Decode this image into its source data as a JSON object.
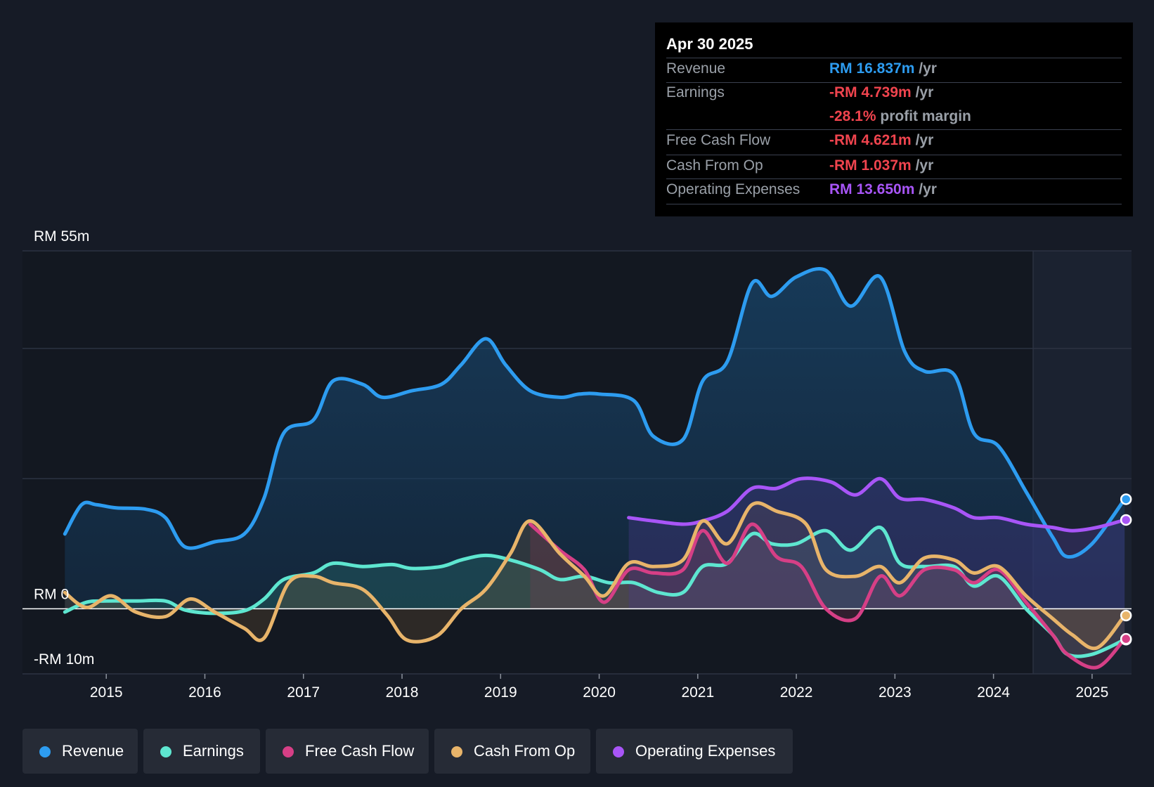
{
  "tooltip": {
    "date": "Apr 30 2025",
    "rows": [
      {
        "label": "Revenue",
        "value": "RM 16.837m",
        "unit": "/yr",
        "color": "#2d9cf0"
      },
      {
        "label": "Earnings",
        "value": "-RM 4.739m",
        "unit": "/yr",
        "color": "#f0444e"
      },
      {
        "label": "",
        "value": "-28.1%",
        "unit": "profit margin",
        "color": "#f0444e"
      },
      {
        "label": "Free Cash Flow",
        "value": "-RM 4.621m",
        "unit": "/yr",
        "color": "#f0444e"
      },
      {
        "label": "Cash From Op",
        "value": "-RM 1.037m",
        "unit": "/yr",
        "color": "#f0444e"
      },
      {
        "label": "Operating Expenses",
        "value": "RM 13.650m",
        "unit": "/yr",
        "color": "#a855f7"
      }
    ]
  },
  "legend": [
    {
      "label": "Revenue",
      "color": "#2d9cf0"
    },
    {
      "label": "Earnings",
      "color": "#5ee6d0"
    },
    {
      "label": "Free Cash Flow",
      "color": "#d63f86"
    },
    {
      "label": "Cash From Op",
      "color": "#e8b46a"
    },
    {
      "label": "Operating Expenses",
      "color": "#a855f7"
    }
  ],
  "chart_data": {
    "type": "line",
    "title": "",
    "xlabel": "",
    "ylabel": "",
    "currency_unit": "RM m",
    "ylim": [
      -10,
      55
    ],
    "y_tick_labels": [
      {
        "value": 55,
        "label": "RM 55m"
      },
      {
        "value": 0,
        "label": "RM 0"
      },
      {
        "value": -10,
        "label": "-RM 10m"
      }
    ],
    "gridlines": [
      55,
      40,
      20,
      0,
      -10
    ],
    "xlim": [
      2014.15,
      2025.4
    ],
    "x_ticks": [
      2015,
      2016,
      2017,
      2018,
      2019,
      2020,
      2021,
      2022,
      2023,
      2024,
      2025
    ],
    "x_tick_labels": [
      "2015",
      "2016",
      "2017",
      "2018",
      "2019",
      "2020",
      "2021",
      "2022",
      "2023",
      "2024",
      "2025"
    ],
    "forecast_start": 2024.33,
    "series": [
      {
        "name": "Revenue",
        "color": "#2d9cf0",
        "points": [
          [
            2014.58,
            11.5
          ],
          [
            2014.75,
            16
          ],
          [
            2014.9,
            16
          ],
          [
            2015.1,
            15.5
          ],
          [
            2015.4,
            15.3
          ],
          [
            2015.6,
            14
          ],
          [
            2015.8,
            9.5
          ],
          [
            2016.1,
            10.3
          ],
          [
            2016.4,
            11.5
          ],
          [
            2016.6,
            17
          ],
          [
            2016.8,
            27
          ],
          [
            2017.1,
            29
          ],
          [
            2017.3,
            35
          ],
          [
            2017.6,
            34.5
          ],
          [
            2017.8,
            32.5
          ],
          [
            2018.1,
            33.5
          ],
          [
            2018.4,
            34.5
          ],
          [
            2018.6,
            37.5
          ],
          [
            2018.85,
            41.5
          ],
          [
            2019.05,
            37.5
          ],
          [
            2019.3,
            33.5
          ],
          [
            2019.6,
            32.5
          ],
          [
            2019.8,
            33
          ],
          [
            2020.0,
            33
          ],
          [
            2020.35,
            32
          ],
          [
            2020.55,
            26.5
          ],
          [
            2020.85,
            26
          ],
          [
            2021.05,
            35
          ],
          [
            2021.3,
            38
          ],
          [
            2021.55,
            50
          ],
          [
            2021.75,
            48
          ],
          [
            2022.0,
            51
          ],
          [
            2022.3,
            52
          ],
          [
            2022.55,
            46.5
          ],
          [
            2022.85,
            51
          ],
          [
            2023.1,
            39.5
          ],
          [
            2023.3,
            36.5
          ],
          [
            2023.6,
            36
          ],
          [
            2023.8,
            27
          ],
          [
            2024.05,
            25
          ],
          [
            2024.33,
            18
          ],
          [
            2024.6,
            11
          ],
          [
            2024.75,
            8
          ],
          [
            2025.0,
            10
          ],
          [
            2025.33,
            16.837
          ]
        ]
      },
      {
        "name": "Earnings",
        "color": "#5ee6d0",
        "points": [
          [
            2014.58,
            -0.5
          ],
          [
            2014.8,
            1
          ],
          [
            2015.0,
            1.2
          ],
          [
            2015.3,
            1.2
          ],
          [
            2015.6,
            1.2
          ],
          [
            2015.8,
            -0.2
          ],
          [
            2016.1,
            -0.7
          ],
          [
            2016.4,
            -0.3
          ],
          [
            2016.6,
            1.5
          ],
          [
            2016.8,
            4.5
          ],
          [
            2017.1,
            5.5
          ],
          [
            2017.3,
            7
          ],
          [
            2017.6,
            6.5
          ],
          [
            2017.9,
            6.8
          ],
          [
            2018.1,
            6.2
          ],
          [
            2018.4,
            6.5
          ],
          [
            2018.6,
            7.5
          ],
          [
            2018.85,
            8.2
          ],
          [
            2019.1,
            7.5
          ],
          [
            2019.4,
            6
          ],
          [
            2019.6,
            4.5
          ],
          [
            2019.85,
            5
          ],
          [
            2020.1,
            4
          ],
          [
            2020.35,
            4
          ],
          [
            2020.6,
            2.5
          ],
          [
            2020.85,
            2.5
          ],
          [
            2021.05,
            6.5
          ],
          [
            2021.3,
            7
          ],
          [
            2021.55,
            11.5
          ],
          [
            2021.75,
            10
          ],
          [
            2022.0,
            10
          ],
          [
            2022.3,
            12
          ],
          [
            2022.55,
            9
          ],
          [
            2022.85,
            12.5
          ],
          [
            2023.05,
            7
          ],
          [
            2023.3,
            6.5
          ],
          [
            2023.6,
            6.5
          ],
          [
            2023.8,
            3.5
          ],
          [
            2024.05,
            5
          ],
          [
            2024.33,
            0
          ],
          [
            2024.6,
            -4
          ],
          [
            2024.75,
            -7
          ],
          [
            2025.0,
            -7
          ],
          [
            2025.33,
            -4.739
          ]
        ]
      },
      {
        "name": "Free Cash Flow",
        "color": "#d63f86",
        "points": [
          [
            2019.3,
            13
          ],
          [
            2019.6,
            9
          ],
          [
            2019.85,
            6
          ],
          [
            2020.05,
            1
          ],
          [
            2020.3,
            6
          ],
          [
            2020.55,
            5.5
          ],
          [
            2020.85,
            6
          ],
          [
            2021.05,
            12
          ],
          [
            2021.3,
            7
          ],
          [
            2021.55,
            13
          ],
          [
            2021.8,
            8
          ],
          [
            2022.05,
            6.5
          ],
          [
            2022.3,
            0
          ],
          [
            2022.6,
            -1.5
          ],
          [
            2022.85,
            5
          ],
          [
            2023.05,
            2
          ],
          [
            2023.3,
            6
          ],
          [
            2023.6,
            6
          ],
          [
            2023.8,
            4
          ],
          [
            2024.05,
            6
          ],
          [
            2024.33,
            1
          ],
          [
            2024.6,
            -4
          ],
          [
            2024.75,
            -7
          ],
          [
            2025.05,
            -9
          ],
          [
            2025.33,
            -4.621
          ]
        ]
      },
      {
        "name": "Cash From Op",
        "color": "#e8b46a",
        "points": [
          [
            2014.58,
            2.5
          ],
          [
            2014.8,
            0.2
          ],
          [
            2015.05,
            2
          ],
          [
            2015.3,
            -0.5
          ],
          [
            2015.6,
            -1.2
          ],
          [
            2015.85,
            1.5
          ],
          [
            2016.1,
            -0.5
          ],
          [
            2016.4,
            -3
          ],
          [
            2016.6,
            -4.5
          ],
          [
            2016.85,
            4
          ],
          [
            2017.1,
            5
          ],
          [
            2017.3,
            4
          ],
          [
            2017.6,
            3
          ],
          [
            2017.85,
            -1
          ],
          [
            2018.05,
            -4.8
          ],
          [
            2018.35,
            -4.2
          ],
          [
            2018.6,
            0
          ],
          [
            2018.85,
            3
          ],
          [
            2019.1,
            8.5
          ],
          [
            2019.3,
            13.5
          ],
          [
            2019.6,
            8.5
          ],
          [
            2019.85,
            5
          ],
          [
            2020.05,
            2
          ],
          [
            2020.3,
            7
          ],
          [
            2020.55,
            6.5
          ],
          [
            2020.85,
            7.5
          ],
          [
            2021.05,
            13.5
          ],
          [
            2021.3,
            10
          ],
          [
            2021.55,
            16
          ],
          [
            2021.8,
            15
          ],
          [
            2022.1,
            13
          ],
          [
            2022.3,
            6
          ],
          [
            2022.6,
            5
          ],
          [
            2022.85,
            6.5
          ],
          [
            2023.05,
            4
          ],
          [
            2023.3,
            7.8
          ],
          [
            2023.6,
            7.5
          ],
          [
            2023.8,
            5.5
          ],
          [
            2024.05,
            6.5
          ],
          [
            2024.33,
            2
          ],
          [
            2024.6,
            -1.5
          ],
          [
            2024.8,
            -4
          ],
          [
            2025.05,
            -6
          ],
          [
            2025.33,
            -1.037
          ]
        ]
      },
      {
        "name": "Operating Expenses",
        "color": "#a855f7",
        "points": [
          [
            2020.3,
            14
          ],
          [
            2020.55,
            13.5
          ],
          [
            2020.85,
            13
          ],
          [
            2021.05,
            13.5
          ],
          [
            2021.3,
            15
          ],
          [
            2021.55,
            18.5
          ],
          [
            2021.8,
            18.5
          ],
          [
            2022.05,
            20
          ],
          [
            2022.35,
            19.5
          ],
          [
            2022.6,
            17.5
          ],
          [
            2022.85,
            20
          ],
          [
            2023.05,
            17
          ],
          [
            2023.3,
            16.8
          ],
          [
            2023.6,
            15.5
          ],
          [
            2023.8,
            14
          ],
          [
            2024.05,
            14
          ],
          [
            2024.33,
            13
          ],
          [
            2024.6,
            12.5
          ],
          [
            2024.8,
            12
          ],
          [
            2025.05,
            12.5
          ],
          [
            2025.33,
            13.65
          ]
        ]
      }
    ]
  }
}
